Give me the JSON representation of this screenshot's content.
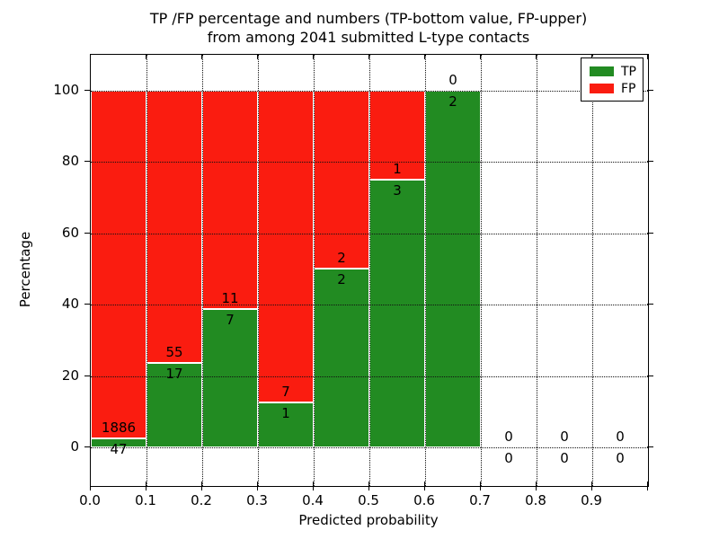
{
  "chart_data": {
    "type": "bar",
    "stacked": true,
    "title_line1": "TP /FP percentage and numbers (TP-bottom value, FP-upper)",
    "title_line2": "from among 2041 submitted L-type contacts",
    "xlabel": "Predicted probability",
    "ylabel": "Percentage",
    "total_contacts": 2041,
    "xlim": [
      0.0,
      1.0
    ],
    "ylim": [
      -10.8,
      110.0
    ],
    "bin_width": 0.1,
    "bin_starts": [
      0.0,
      0.1,
      0.2,
      0.3,
      0.4,
      0.5,
      0.6,
      0.7,
      0.8,
      0.9
    ],
    "x_tick_values": [
      0.0,
      0.1,
      0.2,
      0.3,
      0.4,
      0.5,
      0.6,
      0.7,
      0.8,
      0.9,
      1.0
    ],
    "x_tick_labels": [
      "0.0",
      "0.1",
      "0.2",
      "0.3",
      "0.4",
      "0.5",
      "0.6",
      "0.7",
      "0.8",
      "0.9",
      ""
    ],
    "y_ticks": [
      0,
      20,
      40,
      60,
      80,
      100
    ],
    "grid": "dotted",
    "legend_position": "upper right",
    "series": [
      {
        "name": "TP",
        "color": "#228b22",
        "counts": [
          47,
          17,
          7,
          1,
          2,
          3,
          2,
          0,
          0,
          0
        ]
      },
      {
        "name": "FP",
        "color": "#fa1c10",
        "counts": [
          1886,
          55,
          11,
          7,
          2,
          1,
          0,
          0,
          0,
          0
        ]
      }
    ],
    "tp_percentages": [
      2.43,
      23.61,
      38.89,
      12.5,
      50.0,
      75.0,
      100.0,
      null,
      null,
      null
    ]
  }
}
